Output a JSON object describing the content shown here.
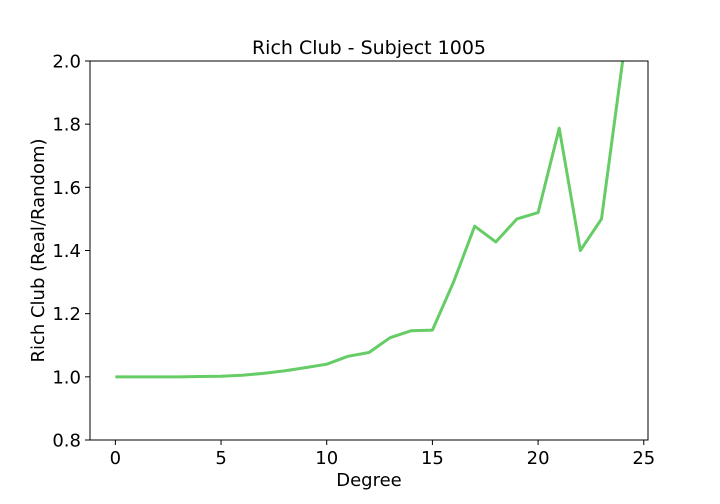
{
  "chart_data": {
    "type": "line",
    "title": "Rich Club - Subject 1005",
    "xlabel": "Degree",
    "ylabel": "Rich Club (Real/Random)",
    "xlim": [
      -1.2,
      25.2
    ],
    "ylim": [
      0.8,
      2.0
    ],
    "xticks": [
      0,
      5,
      10,
      15,
      20,
      25
    ],
    "yticks": [
      0.8,
      1.0,
      1.2,
      1.4,
      1.6,
      1.8,
      2.0
    ],
    "xtick_labels": [
      "0",
      "5",
      "10",
      "15",
      "20",
      "25"
    ],
    "ytick_labels": [
      "0.8",
      "1.0",
      "1.2",
      "1.4",
      "1.6",
      "1.8",
      "2.0"
    ],
    "grid": false,
    "series": [
      {
        "color": "#66cc66",
        "x": [
          0,
          1,
          2,
          3,
          4,
          5,
          6,
          7,
          8,
          9,
          10,
          11,
          12,
          13,
          14,
          15,
          16,
          17,
          18,
          19,
          20,
          21,
          22,
          23,
          24
        ],
        "y": [
          1.0,
          1.0,
          1.0,
          1.0,
          1.001,
          1.002,
          1.005,
          1.011,
          1.019,
          1.029,
          1.04,
          1.065,
          1.077,
          1.124,
          1.146,
          1.148,
          1.3,
          1.477,
          1.427,
          1.5,
          1.52,
          1.787,
          1.4,
          1.5,
          2.0
        ]
      }
    ]
  }
}
